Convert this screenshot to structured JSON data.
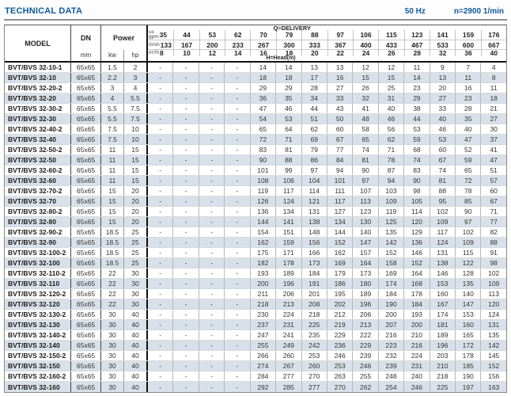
{
  "page": {
    "title": "TECHNICAL DATA",
    "frequency": "50 Hz",
    "speed": "n=2900 1/min"
  },
  "table": {
    "col_model": "MODEL",
    "col_dn": "DN",
    "col_dn_unit": "mm",
    "col_power": "Power",
    "col_kw": "kw",
    "col_hp": "hp",
    "delivery_label": "Q=DELIVERY",
    "head_label": "H=Head(m)",
    "unit_gpm_label": [
      "us",
      "gpm"
    ],
    "unit_lmin_label": "l/min",
    "unit_m3h_label": "m³/h",
    "gpm": [
      35,
      44,
      53,
      62,
      70,
      79,
      88,
      97,
      106,
      115,
      123,
      141,
      159,
      176
    ],
    "lmin": [
      133,
      167,
      200,
      233,
      267,
      300,
      333,
      367,
      400,
      433,
      467,
      533,
      600,
      667
    ],
    "m3h": [
      8,
      10,
      12,
      14,
      16,
      18,
      20,
      22,
      24,
      26,
      28,
      32,
      36,
      40
    ],
    "rows": [
      {
        "model": "BVT/BVS 32-10-1",
        "dn": "65x65",
        "kw": "1.5",
        "hp": "2",
        "head": [
          "-",
          "-",
          "-",
          "-",
          14,
          14,
          13,
          13,
          12,
          12,
          11,
          9,
          7,
          4
        ]
      },
      {
        "model": "BVT/BVS 32-10",
        "dn": "65x65",
        "kw": "2.2",
        "hp": "3",
        "head": [
          "-",
          "-",
          "-",
          "-",
          18,
          18,
          17,
          16,
          15,
          15,
          14,
          13,
          11,
          8
        ]
      },
      {
        "model": "BVT/BVS 32-20-2",
        "dn": "65x65",
        "kw": "3",
        "hp": "4",
        "head": [
          "-",
          "-",
          "-",
          "-",
          29,
          29,
          28,
          27,
          26,
          25,
          23,
          20,
          16,
          11
        ]
      },
      {
        "model": "BVT/BVS 32-20",
        "dn": "65x65",
        "kw": "4",
        "hp": "5.5",
        "head": [
          "-",
          "-",
          "-",
          "-",
          36,
          35,
          34,
          33,
          32,
          31,
          29,
          27,
          23,
          18
        ]
      },
      {
        "model": "BVT/BVS 32-30-2",
        "dn": "65x65",
        "kw": "5.5",
        "hp": "7.5",
        "head": [
          "-",
          "-",
          "-",
          "-",
          47,
          46,
          44,
          43,
          41,
          40,
          38,
          33,
          28,
          21
        ]
      },
      {
        "model": "BVT/BVS 32-30",
        "dn": "65x65",
        "kw": "5.5",
        "hp": "7.5",
        "head": [
          "-",
          "-",
          "-",
          "-",
          54,
          53,
          51,
          50,
          48,
          46,
          44,
          40,
          35,
          27
        ]
      },
      {
        "model": "BVT/BVS 32-40-2",
        "dn": "65x65",
        "kw": "7.5",
        "hp": "10",
        "head": [
          "-",
          "-",
          "-",
          "-",
          65,
          64,
          62,
          60,
          58,
          56,
          53,
          46,
          40,
          30
        ]
      },
      {
        "model": "BVT/BVS 32-40",
        "dn": "65x65",
        "kw": "7.5",
        "hp": "10",
        "head": [
          "-",
          "-",
          "-",
          "-",
          72,
          71,
          69,
          67,
          65,
          62,
          59,
          53,
          47,
          37
        ]
      },
      {
        "model": "BVT/BVS 32-50-2",
        "dn": "65x65",
        "kw": "11",
        "hp": "15",
        "head": [
          "-",
          "-",
          "-",
          "-",
          83,
          81,
          79,
          77,
          74,
          71,
          68,
          60,
          52,
          41
        ]
      },
      {
        "model": "BVT/BVS 32-50",
        "dn": "65x65",
        "kw": "11",
        "hp": "15",
        "head": [
          "-",
          "-",
          "-",
          "-",
          90,
          88,
          86,
          84,
          81,
          78,
          74,
          67,
          59,
          47
        ]
      },
      {
        "model": "BVT/BVS 32-60-2",
        "dn": "65x65",
        "kw": "11",
        "hp": "15",
        "head": [
          "-",
          "-",
          "-",
          "-",
          101,
          99,
          97,
          94,
          90,
          87,
          83,
          74,
          65,
          51
        ]
      },
      {
        "model": "BVT/BVS 32-60",
        "dn": "65x65",
        "kw": "11",
        "hp": "15",
        "head": [
          "-",
          "-",
          "-",
          "-",
          108,
          106,
          104,
          101,
          97,
          94,
          90,
          81,
          72,
          57
        ]
      },
      {
        "model": "BVT/BVS 32-70-2",
        "dn": "65x65",
        "kw": "15",
        "hp": "20",
        "head": [
          "-",
          "-",
          "-",
          "-",
          119,
          117,
          114,
          111,
          107,
          103,
          98,
          88,
          78,
          60
        ]
      },
      {
        "model": "BVT/BVS 32-70",
        "dn": "65x65",
        "kw": "15",
        "hp": "20",
        "head": [
          "-",
          "-",
          "-",
          "-",
          126,
          124,
          121,
          117,
          113,
          109,
          105,
          95,
          85,
          67
        ]
      },
      {
        "model": "BVT/BVS 32-80-2",
        "dn": "65x65",
        "kw": "15",
        "hp": "20",
        "head": [
          "-",
          "-",
          "-",
          "-",
          136,
          134,
          131,
          127,
          123,
          119,
          114,
          102,
          90,
          71
        ]
      },
      {
        "model": "BVT/BVS 32-80",
        "dn": "65x65",
        "kw": "15",
        "hp": "20",
        "head": [
          "-",
          "-",
          "-",
          "-",
          144,
          141,
          138,
          134,
          130,
          125,
          120,
          109,
          97,
          77
        ]
      },
      {
        "model": "BVT/BVS 32-90-2",
        "dn": "65x65",
        "kw": "18.5",
        "hp": "25",
        "head": [
          "-",
          "-",
          "-",
          "-",
          154,
          151,
          148,
          144,
          140,
          135,
          129,
          117,
          102,
          82
        ]
      },
      {
        "model": "BVT/BVS 32-90",
        "dn": "65x65",
        "kw": "18.5",
        "hp": "25",
        "head": [
          "-",
          "-",
          "-",
          "-",
          162,
          159,
          156,
          152,
          147,
          142,
          136,
          124,
          109,
          88
        ]
      },
      {
        "model": "BVT/BVS 32-100-2",
        "dn": "65x65",
        "kw": "18.5",
        "hp": "25",
        "head": [
          "-",
          "-",
          "-",
          "-",
          175,
          171,
          166,
          162,
          157,
          152,
          146,
          131,
          115,
          91
        ]
      },
      {
        "model": "BVT/BVS 32-100",
        "dn": "65x65",
        "kw": "18.5",
        "hp": "25",
        "head": [
          "-",
          "-",
          "-",
          "-",
          182,
          178,
          173,
          169,
          164,
          158,
          152,
          138,
          122,
          98
        ]
      },
      {
        "model": "BVT/BVS 32-110-2",
        "dn": "65x65",
        "kw": "22",
        "hp": "30",
        "head": [
          "-",
          "-",
          "-",
          "-",
          193,
          189,
          184,
          179,
          173,
          169,
          164,
          146,
          128,
          102
        ]
      },
      {
        "model": "BVT/BVS 32-110",
        "dn": "65x65",
        "kw": "22",
        "hp": "30",
        "head": [
          "-",
          "-",
          "-",
          "-",
          200,
          196,
          191,
          186,
          180,
          174,
          168,
          153,
          135,
          109
        ]
      },
      {
        "model": "BVT/BVS 32-120-2",
        "dn": "65x65",
        "kw": "22",
        "hp": "30",
        "head": [
          "-",
          "-",
          "-",
          "-",
          211,
          206,
          201,
          195,
          189,
          184,
          178,
          160,
          140,
          113
        ]
      },
      {
        "model": "BVT/BVS 32-120",
        "dn": "65x65",
        "kw": "22",
        "hp": "30",
        "head": [
          "-",
          "-",
          "-",
          "-",
          218,
          213,
          208,
          202,
          196,
          190,
          184,
          167,
          147,
          120
        ]
      },
      {
        "model": "BVT/BVS 32-130-2",
        "dn": "65x65",
        "kw": "30",
        "hp": "40",
        "head": [
          "-",
          "-",
          "-",
          "-",
          230,
          224,
          218,
          212,
          206,
          200,
          193,
          174,
          153,
          124
        ]
      },
      {
        "model": "BVT/BVS 32-130",
        "dn": "65x65",
        "kw": "30",
        "hp": "40",
        "head": [
          "-",
          "-",
          "-",
          "-",
          237,
          231,
          225,
          219,
          213,
          207,
          200,
          181,
          160,
          131
        ]
      },
      {
        "model": "BVT/BVS 32-140-2",
        "dn": "65x65",
        "kw": "30",
        "hp": "40",
        "head": [
          "-",
          "-",
          "-",
          "-",
          247,
          241,
          235,
          229,
          222,
          216,
          210,
          189,
          165,
          135
        ]
      },
      {
        "model": "BVT/BVS 32-140",
        "dn": "65x65",
        "kw": "30",
        "hp": "40",
        "head": [
          "-",
          "-",
          "-",
          "-",
          255,
          249,
          242,
          236,
          229,
          223,
          216,
          196,
          172,
          142
        ]
      },
      {
        "model": "BVT/BVS 32-150-2",
        "dn": "65x65",
        "kw": "30",
        "hp": "40",
        "head": [
          "-",
          "-",
          "-",
          "-",
          266,
          260,
          253,
          246,
          239,
          232,
          224,
          203,
          178,
          145
        ]
      },
      {
        "model": "BVT/BVS 32-150",
        "dn": "65x65",
        "kw": "30",
        "hp": "40",
        "head": [
          "-",
          "-",
          "-",
          "-",
          274,
          267,
          260,
          253,
          246,
          239,
          231,
          210,
          185,
          152
        ]
      },
      {
        "model": "BVT/BVS 32-160-2",
        "dn": "65x65",
        "kw": "30",
        "hp": "40",
        "head": [
          "-",
          "-",
          "-",
          "-",
          284,
          277,
          270,
          263,
          255,
          248,
          240,
          218,
          190,
          156
        ]
      },
      {
        "model": "BVT/BVS 32-160",
        "dn": "65x65",
        "kw": "30",
        "hp": "40",
        "head": [
          "-",
          "-",
          "-",
          "-",
          292,
          285,
          277,
          270,
          262,
          254,
          246,
          225,
          197,
          163
        ]
      }
    ]
  },
  "colors": {
    "accent_blue": "#0f5a9e",
    "row_stripe": "#d8e1e9",
    "heavy_border": "#111111",
    "light_border": "#b8b8b8"
  }
}
